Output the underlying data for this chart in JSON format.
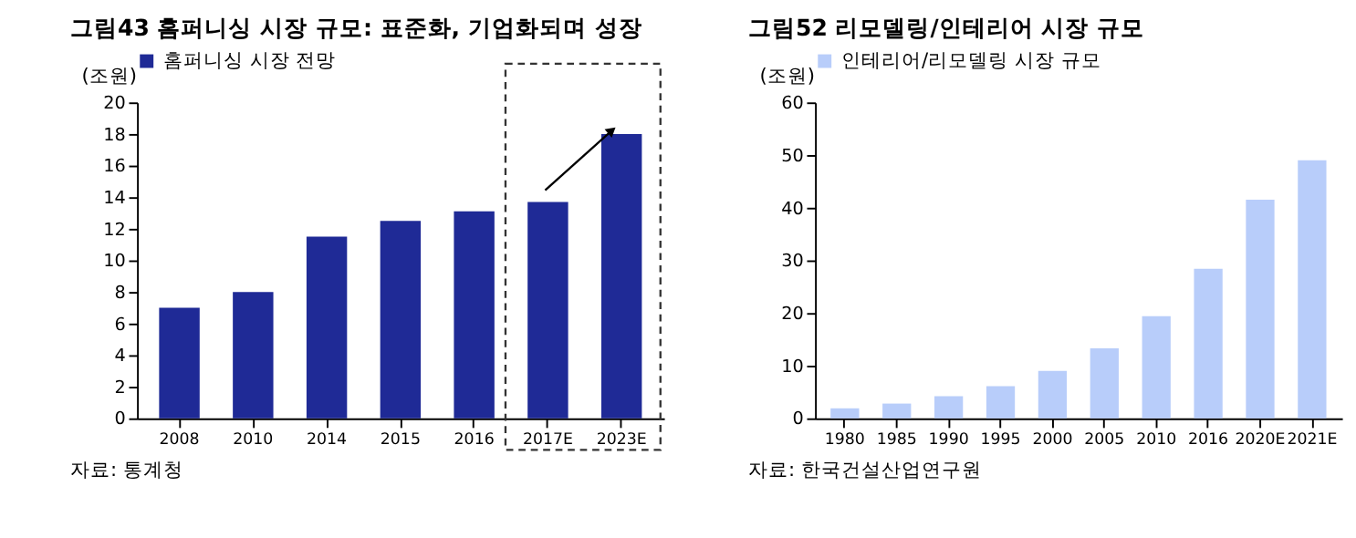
{
  "chart_data": [
    {
      "type": "bar",
      "title": "그림43 홈퍼니싱 시장 규모: 표준화, 기업화되며 성장",
      "ylabel": "(조원)",
      "categories": [
        "2008",
        "2010",
        "2014",
        "2015",
        "2016",
        "2017E",
        "2023E"
      ],
      "series": [
        {
          "name": "홈퍼니싱 시장 전망",
          "color": "#1f2a96",
          "values": [
            7,
            8,
            11.5,
            12.5,
            13.1,
            13.7,
            18
          ]
        }
      ],
      "ylim": [
        0,
        20
      ],
      "yticks": [
        0,
        2,
        4,
        6,
        8,
        10,
        12,
        14,
        16,
        18,
        20
      ],
      "legend": "top",
      "annotations": [
        "자료: 통계청"
      ]
    },
    {
      "type": "bar",
      "title": "그림52 리모델링/인테리어 시장 규모",
      "ylabel": "(조원)",
      "categories": [
        "1980",
        "1985",
        "1990",
        "1995",
        "2000",
        "2005",
        "2010",
        "2016",
        "2020E",
        "2021E"
      ],
      "series": [
        {
          "name": "인테리어/리모델링 시장 규모",
          "color": "#b8cdfa",
          "values": [
            1.9,
            2.8,
            4.2,
            6.1,
            9.0,
            13.3,
            19.4,
            28.4,
            41.5,
            49
          ]
        }
      ],
      "ylim": [
        0,
        60
      ],
      "yticks": [
        0,
        10,
        20,
        30,
        40,
        50,
        60
      ],
      "legend": "top",
      "annotations": [
        "자료: 한국건설산업연구원"
      ]
    }
  ]
}
